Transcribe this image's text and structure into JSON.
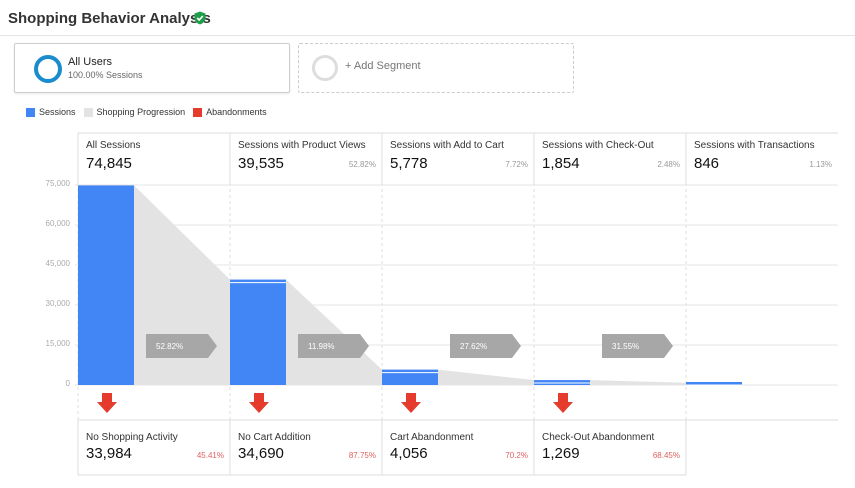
{
  "header": {
    "title": "Shopping Behavior Analysis",
    "verified_icon": "check-shield-icon"
  },
  "segments": [
    {
      "name": "All Users",
      "sub": "100.00% Sessions",
      "color": "#1a8ccd"
    },
    {
      "add_label": "+ Add Segment"
    }
  ],
  "legend": [
    {
      "label": "Sessions",
      "color": "#4285f4"
    },
    {
      "label": "Shopping Progression",
      "color": "#e3e3e3"
    },
    {
      "label": "Abandonments",
      "color": "#e53b2c"
    }
  ],
  "y_axis": {
    "ticks": [
      "75,000",
      "60,000",
      "45,000",
      "30,000",
      "15,000",
      "0"
    ]
  },
  "stages": [
    {
      "label": "All Sessions",
      "value": "74,845",
      "pct": ""
    },
    {
      "label": "Sessions with Product Views",
      "value": "39,535",
      "pct": "52.82%"
    },
    {
      "label": "Sessions with Add to Cart",
      "value": "5,778",
      "pct": "7.72%"
    },
    {
      "label": "Sessions with Check-Out",
      "value": "1,854",
      "pct": "2.48%"
    },
    {
      "label": "Sessions with Transactions",
      "value": "846",
      "pct": "1.13%"
    }
  ],
  "progression": [
    "52.82%",
    "11.98%",
    "27.62%",
    "31.55%"
  ],
  "abandonments": [
    {
      "label": "No Shopping Activity",
      "value": "33,984",
      "pct": "45.41%"
    },
    {
      "label": "No Cart Addition",
      "value": "34,690",
      "pct": "87.75%"
    },
    {
      "label": "Cart Abandonment",
      "value": "4,056",
      "pct": "70.2%"
    },
    {
      "label": "Check-Out Abandonment",
      "value": "1,269",
      "pct": "68.45%"
    }
  ],
  "chart_data": {
    "type": "bar",
    "categories": [
      "All Sessions",
      "Sessions with Product Views",
      "Sessions with Add to Cart",
      "Sessions with Check-Out",
      "Sessions with Transactions"
    ],
    "values": [
      74845,
      39535,
      5778,
      1854,
      846
    ],
    "ylim": [
      0,
      75000
    ],
    "bar_color": "#4285f4",
    "progression_color": "#e3e3e3",
    "abandon_color": "#e53b2c"
  }
}
